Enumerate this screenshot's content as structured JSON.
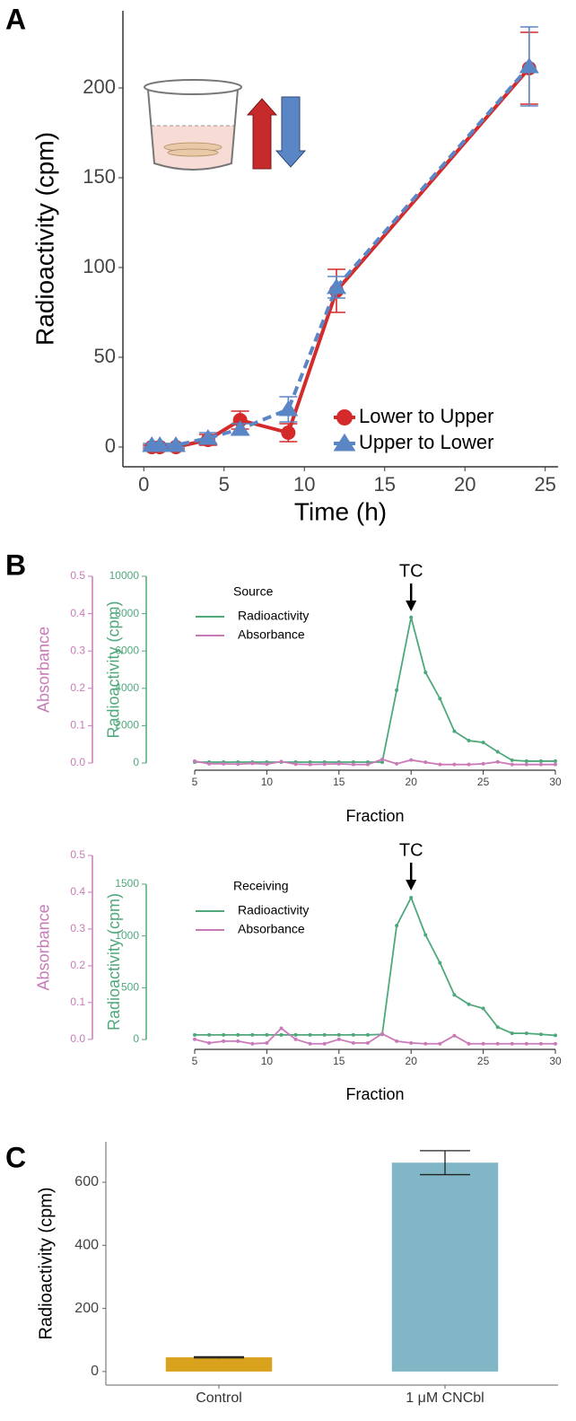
{
  "chart_data": [
    {
      "type": "line",
      "panel": "A",
      "xlabel": "Time (h)",
      "ylabel": "Radioactivity (cpm)",
      "xlim": [
        -1.3,
        25.8
      ],
      "ylim": [
        -11,
        243
      ],
      "xticks": [
        0,
        5,
        10,
        15,
        20,
        25
      ],
      "yticks": [
        0,
        50,
        100,
        150,
        200
      ],
      "legend": "lower right",
      "series": [
        {
          "name": "Lower to Upper",
          "color": "#d42a2a",
          "marker": "circle",
          "dash": false,
          "x": [
            0.5,
            1,
            2,
            4,
            6,
            9,
            12,
            24
          ],
          "values": [
            0,
            0,
            0,
            4,
            15,
            8,
            87,
            211
          ],
          "errors": [
            1,
            1,
            1,
            3,
            5,
            5,
            12,
            20
          ]
        },
        {
          "name": "Upper to Lower",
          "color": "#5b86c5",
          "marker": "triangle",
          "dash": true,
          "x": [
            0.5,
            1,
            2,
            4,
            6,
            9,
            12,
            24
          ],
          "values": [
            1,
            1,
            1,
            5,
            10,
            21,
            89,
            212
          ],
          "errors": [
            1,
            1,
            1,
            3,
            3,
            7,
            6,
            22
          ]
        }
      ]
    },
    {
      "type": "line",
      "panel": "B",
      "legend_title": "Source",
      "legend": "upper left",
      "xlabel": "Fraction",
      "ylabel": "Radioactivity (cpm)",
      "y2label": "Absorbance",
      "annotation": {
        "text": "TC",
        "x": 20
      },
      "xlim": [
        5,
        30
      ],
      "xticks": [
        5,
        10,
        15,
        20,
        25,
        30
      ],
      "ylim": [
        -240,
        10000
      ],
      "yticks": [
        0,
        2000,
        4000,
        6000,
        8000,
        10000
      ],
      "y2lim": [
        -0.012,
        0.5
      ],
      "y2ticks": [
        {
          "value": 0,
          "label": "0.0"
        },
        0.1,
        0.2,
        0.3,
        0.4,
        0.5
      ],
      "x": [
        5,
        6,
        7,
        8,
        9,
        10,
        11,
        12,
        13,
        14,
        15,
        16,
        17,
        18,
        19,
        20,
        21,
        22,
        23,
        24,
        25,
        26,
        27,
        28,
        29,
        30
      ],
      "series": [
        {
          "name": "Radioactivity",
          "color": "#4fa87c",
          "axis": "y",
          "values": [
            50,
            50,
            50,
            50,
            50,
            50,
            50,
            50,
            50,
            50,
            50,
            50,
            50,
            50,
            3900,
            7800,
            4850,
            3450,
            1700,
            1200,
            1100,
            600,
            150,
            100,
            100,
            100
          ]
        },
        {
          "name": "Absorbance",
          "color": "#c97ab8",
          "axis": "y2",
          "values": [
            0.005,
            -0.002,
            -0.002,
            -0.003,
            -0.001,
            -0.003,
            0.004,
            -0.003,
            -0.004,
            -0.003,
            -0.002,
            -0.004,
            -0.004,
            0.01,
            -0.002,
            0.008,
            0.002,
            -0.004,
            -0.004,
            -0.004,
            -0.002,
            0.003,
            -0.004,
            -0.004,
            -0.004,
            -0.004
          ]
        }
      ]
    },
    {
      "type": "line",
      "legend_title": "Receiving",
      "legend": "upper left",
      "xlabel": "Fraction",
      "ylabel": "Radioactivity (cpm)",
      "y2label": "Absorbance",
      "annotation": {
        "text": "TC",
        "x": 20
      },
      "xlim": [
        5,
        30
      ],
      "xticks": [
        5,
        10,
        15,
        20,
        25,
        30
      ],
      "ylim": [
        -69,
        1777
      ],
      "yticks": [
        0,
        500,
        1000,
        1500
      ],
      "y2lim": [
        -0.02,
        0.5
      ],
      "y2ticks": [
        {
          "value": 0,
          "label": "0.0"
        },
        0.1,
        0.2,
        0.3,
        0.4,
        0.5
      ],
      "x": [
        5,
        6,
        7,
        8,
        9,
        10,
        11,
        12,
        13,
        14,
        15,
        16,
        17,
        18,
        19,
        20,
        21,
        22,
        23,
        24,
        25,
        26,
        27,
        28,
        29,
        30
      ],
      "series": [
        {
          "name": "Radioactivity",
          "color": "#4fa87c",
          "axis": "y",
          "values": [
            45,
            45,
            45,
            45,
            45,
            45,
            45,
            45,
            45,
            45,
            45,
            45,
            45,
            50,
            1100,
            1370,
            1010,
            740,
            430,
            340,
            300,
            120,
            60,
            60,
            50,
            40
          ]
        },
        {
          "name": "Absorbance",
          "color": "#c97ab8",
          "axis": "y2",
          "values": [
            0,
            -0.01,
            -0.005,
            -0.005,
            -0.012,
            -0.01,
            0.03,
            0,
            -0.012,
            -0.012,
            0,
            -0.01,
            -0.01,
            0.015,
            -0.005,
            -0.01,
            -0.012,
            -0.012,
            0.01,
            -0.012,
            -0.012,
            -0.012,
            -0.012,
            -0.012,
            -0.012,
            -0.012
          ]
        }
      ]
    },
    {
      "type": "bar",
      "panel": "C",
      "ylabel": "Radioactivity (cpm)",
      "categories": [
        "Control",
        "1 μM CNCbl"
      ],
      "values": [
        45,
        662
      ],
      "errors": [
        2,
        38
      ],
      "colors": [
        "#d9a21c",
        "#80b6c5"
      ],
      "ylim": [
        -43,
        728
      ],
      "yticks": [
        0,
        200,
        400,
        600
      ]
    }
  ]
}
